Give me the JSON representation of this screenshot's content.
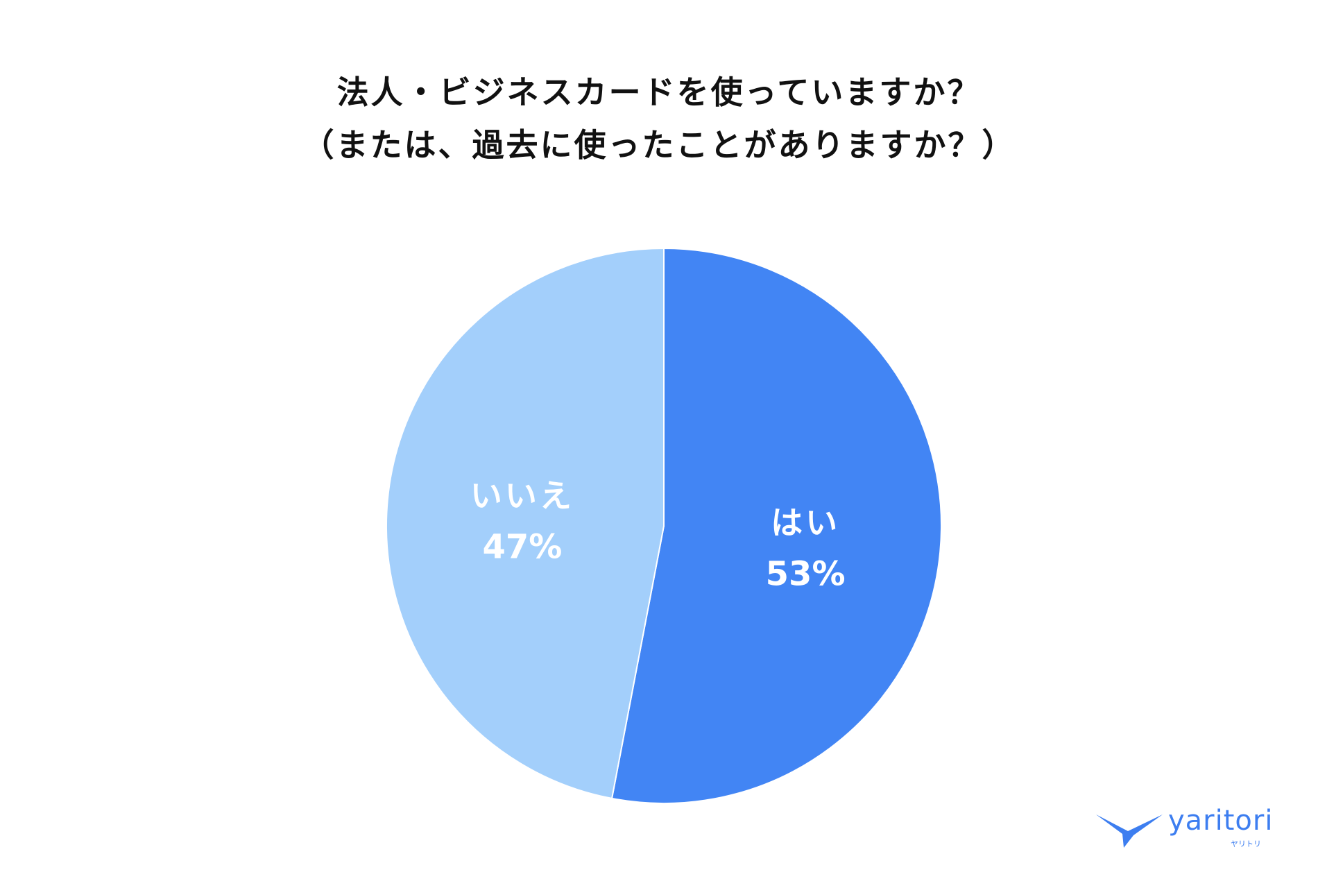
{
  "chart_data": {
    "type": "pie",
    "title_lines": [
      "法人・ビジネスカードを使っていますか？",
      "（または、過去に使ったことがありますか？）"
    ],
    "slices": [
      {
        "label": "はい",
        "value": 53,
        "value_label": "53%",
        "color": "#4285f4"
      },
      {
        "label": "いいえ",
        "value": 47,
        "value_label": "47%",
        "color": "#a3cffb"
      }
    ],
    "start": "12 o'clock",
    "direction": "clockwise",
    "legend": "none"
  },
  "logo": {
    "name": "yaritori",
    "sub": "ヤリトリ",
    "color": "#3d7ef0"
  }
}
